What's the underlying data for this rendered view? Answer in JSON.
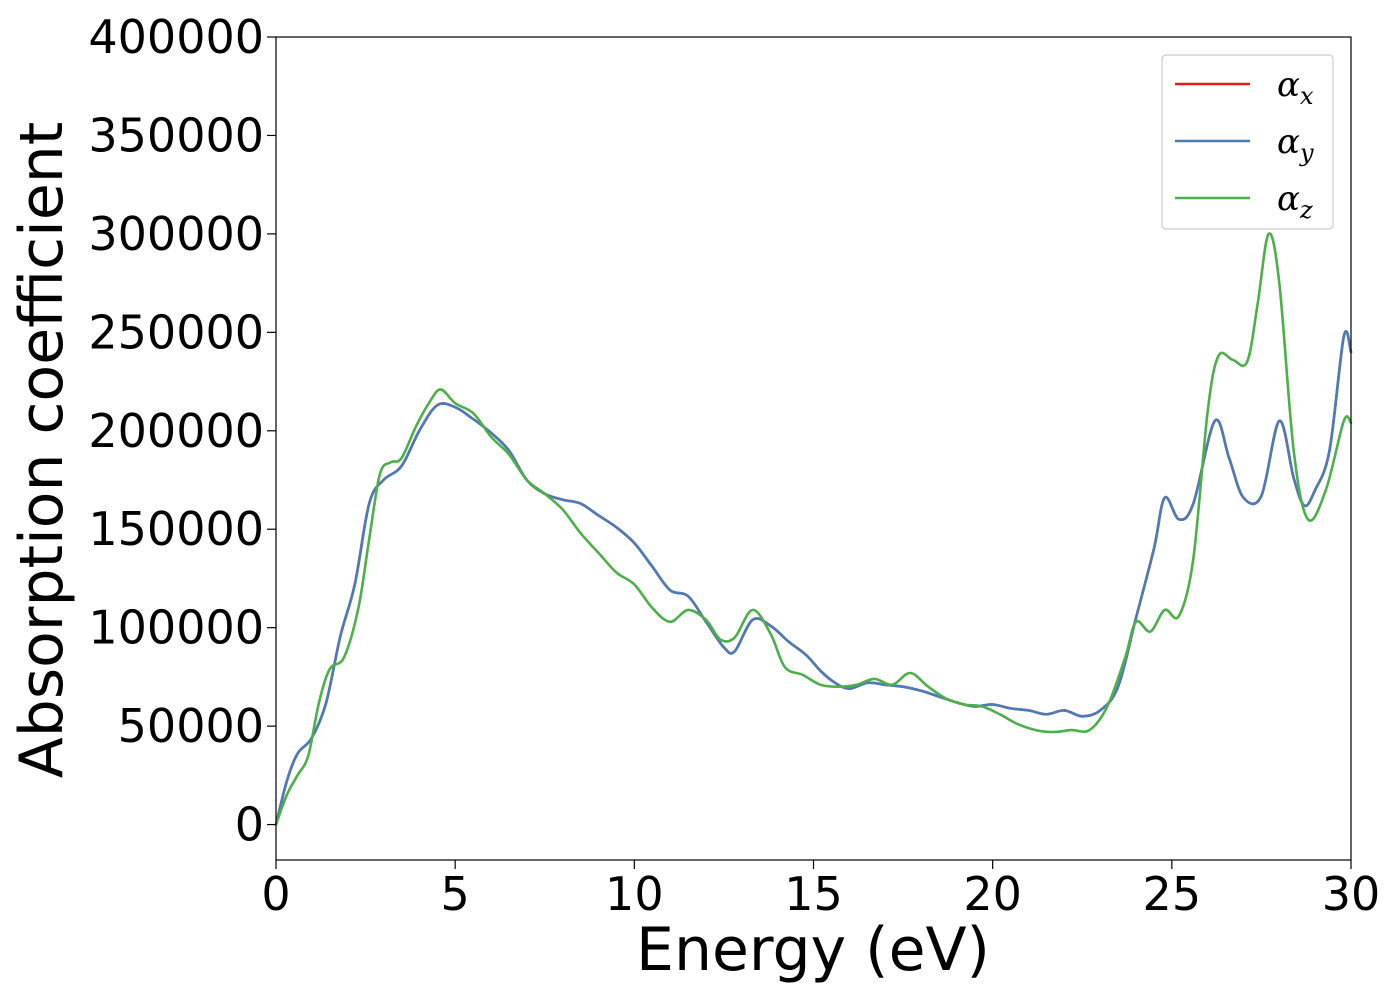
{
  "chart_data": {
    "type": "line",
    "title": "",
    "xlabel": "Energy (eV)",
    "ylabel": "Absorption coefficient",
    "xlim": [
      0,
      30
    ],
    "ylim": [
      -18000,
      400000
    ],
    "x_ticks": [
      "0",
      "5",
      "10",
      "15",
      "20",
      "25",
      "30"
    ],
    "y_ticks": [
      "0",
      "50000",
      "100000",
      "150000",
      "200000",
      "250000",
      "300000",
      "350000",
      "400000"
    ],
    "grid": false,
    "legend_position": "top-right",
    "series": [
      {
        "name": "αx",
        "legend_base": "α",
        "legend_sub": "x",
        "color": "#e41a1c",
        "points": [
          [
            0,
            0
          ],
          [
            0.3,
            22000
          ],
          [
            0.6,
            36000
          ],
          [
            1.0,
            44000
          ],
          [
            1.4,
            62000
          ],
          [
            1.8,
            96000
          ],
          [
            2.2,
            122000
          ],
          [
            2.6,
            163000
          ],
          [
            3.0,
            175000
          ],
          [
            3.5,
            182000
          ],
          [
            4.0,
            200000
          ],
          [
            4.5,
            213000
          ],
          [
            5.0,
            212000
          ],
          [
            5.5,
            206000
          ],
          [
            6.0,
            199000
          ],
          [
            6.5,
            190000
          ],
          [
            7.0,
            175000
          ],
          [
            7.5,
            168000
          ],
          [
            8.0,
            165000
          ],
          [
            8.5,
            163000
          ],
          [
            9.0,
            157000
          ],
          [
            9.5,
            151000
          ],
          [
            10.0,
            143000
          ],
          [
            10.5,
            131000
          ],
          [
            11.0,
            119000
          ],
          [
            11.5,
            116000
          ],
          [
            12.0,
            103000
          ],
          [
            12.5,
            90000
          ],
          [
            12.8,
            88000
          ],
          [
            13.3,
            104000
          ],
          [
            13.8,
            101000
          ],
          [
            14.3,
            93000
          ],
          [
            14.8,
            86000
          ],
          [
            15.2,
            78000
          ],
          [
            15.6,
            72000
          ],
          [
            16.0,
            69000
          ],
          [
            16.5,
            72000
          ],
          [
            17.0,
            71000
          ],
          [
            17.5,
            70000
          ],
          [
            18.0,
            68000
          ],
          [
            18.5,
            65000
          ],
          [
            19.0,
            62000
          ],
          [
            19.5,
            60000
          ],
          [
            20.0,
            61000
          ],
          [
            20.5,
            59000
          ],
          [
            21.0,
            58000
          ],
          [
            21.5,
            56000
          ],
          [
            22.0,
            58000
          ],
          [
            22.5,
            55000
          ],
          [
            23.0,
            58000
          ],
          [
            23.5,
            70000
          ],
          [
            24.0,
            105000
          ],
          [
            24.5,
            140000
          ],
          [
            24.8,
            166000
          ],
          [
            25.2,
            155000
          ],
          [
            25.6,
            163000
          ],
          [
            26.2,
            205000
          ],
          [
            26.6,
            186000
          ],
          [
            27.0,
            166000
          ],
          [
            27.5,
            167000
          ],
          [
            28.0,
            205000
          ],
          [
            28.4,
            176000
          ],
          [
            28.7,
            162000
          ],
          [
            29.0,
            170000
          ],
          [
            29.4,
            190000
          ],
          [
            29.8,
            248000
          ],
          [
            30,
            240000
          ]
        ]
      },
      {
        "name": "αy",
        "legend_base": "α",
        "legend_sub": "y",
        "color": "#4a7cb8",
        "points": [
          [
            0,
            0
          ],
          [
            0.3,
            22000
          ],
          [
            0.6,
            36000
          ],
          [
            1.0,
            44000
          ],
          [
            1.4,
            62000
          ],
          [
            1.8,
            96000
          ],
          [
            2.2,
            122000
          ],
          [
            2.6,
            163000
          ],
          [
            3.0,
            175000
          ],
          [
            3.5,
            182000
          ],
          [
            4.0,
            200000
          ],
          [
            4.5,
            213000
          ],
          [
            5.0,
            212000
          ],
          [
            5.5,
            206000
          ],
          [
            6.0,
            199000
          ],
          [
            6.5,
            190000
          ],
          [
            7.0,
            175000
          ],
          [
            7.5,
            168000
          ],
          [
            8.0,
            165000
          ],
          [
            8.5,
            163000
          ],
          [
            9.0,
            157000
          ],
          [
            9.5,
            151000
          ],
          [
            10.0,
            143000
          ],
          [
            10.5,
            131000
          ],
          [
            11.0,
            119000
          ],
          [
            11.5,
            116000
          ],
          [
            12.0,
            103000
          ],
          [
            12.5,
            90000
          ],
          [
            12.8,
            88000
          ],
          [
            13.3,
            104000
          ],
          [
            13.8,
            101000
          ],
          [
            14.3,
            93000
          ],
          [
            14.8,
            86000
          ],
          [
            15.2,
            78000
          ],
          [
            15.6,
            72000
          ],
          [
            16.0,
            69000
          ],
          [
            16.5,
            72000
          ],
          [
            17.0,
            71000
          ],
          [
            17.5,
            70000
          ],
          [
            18.0,
            68000
          ],
          [
            18.5,
            65000
          ],
          [
            19.0,
            62000
          ],
          [
            19.5,
            60000
          ],
          [
            20.0,
            61000
          ],
          [
            20.5,
            59000
          ],
          [
            21.0,
            58000
          ],
          [
            21.5,
            56000
          ],
          [
            22.0,
            58000
          ],
          [
            22.5,
            55000
          ],
          [
            23.0,
            58000
          ],
          [
            23.5,
            70000
          ],
          [
            24.0,
            105000
          ],
          [
            24.5,
            140000
          ],
          [
            24.8,
            166000
          ],
          [
            25.2,
            155000
          ],
          [
            25.6,
            163000
          ],
          [
            26.2,
            205000
          ],
          [
            26.6,
            186000
          ],
          [
            27.0,
            166000
          ],
          [
            27.5,
            167000
          ],
          [
            28.0,
            205000
          ],
          [
            28.4,
            176000
          ],
          [
            28.7,
            162000
          ],
          [
            29.0,
            170000
          ],
          [
            29.4,
            190000
          ],
          [
            29.8,
            248000
          ],
          [
            30,
            240000
          ]
        ]
      },
      {
        "name": "αz",
        "legend_base": "α",
        "legend_sub": "z",
        "color": "#4daf4a",
        "points": [
          [
            0,
            0
          ],
          [
            0.3,
            15000
          ],
          [
            0.6,
            25000
          ],
          [
            0.9,
            35000
          ],
          [
            1.2,
            62000
          ],
          [
            1.5,
            79000
          ],
          [
            1.9,
            85000
          ],
          [
            2.3,
            110000
          ],
          [
            2.6,
            145000
          ],
          [
            2.9,
            178000
          ],
          [
            3.2,
            184000
          ],
          [
            3.5,
            186000
          ],
          [
            3.9,
            202000
          ],
          [
            4.3,
            215000
          ],
          [
            4.6,
            221000
          ],
          [
            5.0,
            214000
          ],
          [
            5.5,
            209000
          ],
          [
            6.0,
            197000
          ],
          [
            6.5,
            188000
          ],
          [
            7.0,
            175000
          ],
          [
            7.5,
            168000
          ],
          [
            8.0,
            160000
          ],
          [
            8.5,
            148000
          ],
          [
            9.0,
            138000
          ],
          [
            9.5,
            128000
          ],
          [
            10.0,
            122000
          ],
          [
            10.5,
            110000
          ],
          [
            11.0,
            103000
          ],
          [
            11.5,
            109000
          ],
          [
            12.0,
            104000
          ],
          [
            12.4,
            94000
          ],
          [
            12.8,
            95000
          ],
          [
            13.3,
            109000
          ],
          [
            13.8,
            97000
          ],
          [
            14.2,
            80000
          ],
          [
            14.7,
            76000
          ],
          [
            15.2,
            71000
          ],
          [
            15.7,
            70000
          ],
          [
            16.2,
            71000
          ],
          [
            16.7,
            74000
          ],
          [
            17.2,
            71000
          ],
          [
            17.7,
            77000
          ],
          [
            18.2,
            70000
          ],
          [
            18.7,
            64000
          ],
          [
            19.2,
            61000
          ],
          [
            19.7,
            60000
          ],
          [
            20.2,
            56000
          ],
          [
            20.7,
            51000
          ],
          [
            21.2,
            48000
          ],
          [
            21.7,
            47000
          ],
          [
            22.2,
            48000
          ],
          [
            22.7,
            48000
          ],
          [
            23.2,
            60000
          ],
          [
            23.7,
            85000
          ],
          [
            24.0,
            103000
          ],
          [
            24.4,
            98000
          ],
          [
            24.8,
            109000
          ],
          [
            25.2,
            106000
          ],
          [
            25.6,
            135000
          ],
          [
            26.0,
            210000
          ],
          [
            26.3,
            238000
          ],
          [
            26.7,
            236000
          ],
          [
            27.1,
            235000
          ],
          [
            27.4,
            265000
          ],
          [
            27.7,
            300000
          ],
          [
            28.0,
            275000
          ],
          [
            28.4,
            190000
          ],
          [
            28.8,
            155000
          ],
          [
            29.3,
            170000
          ],
          [
            29.8,
            205000
          ],
          [
            30,
            204000
          ]
        ]
      }
    ]
  }
}
